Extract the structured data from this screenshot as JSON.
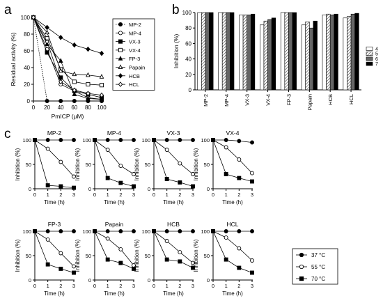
{
  "panels": {
    "a": "a",
    "b": "b",
    "c": "c"
  },
  "chart_data": [
    {
      "id": "a",
      "type": "line",
      "xlabel": "PmICP (μM)",
      "ylabel": "Residual activity (%)",
      "xlim": [
        0,
        100
      ],
      "ylim": [
        0,
        100
      ],
      "xticks": [
        0,
        20,
        40,
        60,
        80,
        100
      ],
      "yticks": [
        0,
        20,
        40,
        60,
        80,
        100
      ],
      "x": [
        0,
        20,
        40,
        60,
        80,
        100
      ],
      "legend_position": "right",
      "series": [
        {
          "name": "MP-2",
          "marker": "circle-filled",
          "dashed": true,
          "values": [
            100,
            0,
            0,
            0,
            0,
            0
          ]
        },
        {
          "name": "MP-4",
          "marker": "circle-open",
          "values": [
            100,
            62,
            20,
            12,
            4,
            2
          ]
        },
        {
          "name": "VX-3",
          "marker": "square-filled",
          "values": [
            100,
            58,
            28,
            12,
            8,
            4
          ]
        },
        {
          "name": "VX-4",
          "marker": "square-open",
          "values": [
            100,
            75,
            38,
            23,
            20,
            19
          ]
        },
        {
          "name": "FP-3",
          "marker": "triangle-filled",
          "values": [
            100,
            68,
            48,
            8,
            3,
            2
          ]
        },
        {
          "name": "Papain",
          "marker": "triangle-open",
          "values": [
            100,
            82,
            36,
            32,
            31,
            29
          ]
        },
        {
          "name": "HCB",
          "marker": "diamond-filled",
          "values": [
            100,
            88,
            76,
            67,
            62,
            57
          ]
        },
        {
          "name": "HCL",
          "marker": "diamond-open",
          "values": [
            100,
            71,
            23,
            13,
            9,
            7
          ]
        }
      ]
    },
    {
      "id": "b",
      "type": "bar",
      "ylabel": "Inhibition (%)",
      "ylim": [
        0,
        100
      ],
      "yticks": [
        0,
        20,
        40,
        60,
        80,
        100
      ],
      "categories": [
        "MP-2",
        "MP-4",
        "VX-3",
        "VX-4",
        "FP-3",
        "Papain",
        "HCB",
        "HCL"
      ],
      "legend_position": "right",
      "series": [
        {
          "name": "4",
          "fill": "#ffffff",
          "pattern": "plain",
          "values": [
            100,
            100,
            97,
            84,
            100,
            84,
            97,
            93
          ]
        },
        {
          "name": "5",
          "fill": "#e0e0e0",
          "pattern": "hatch",
          "values": [
            100,
            100,
            97,
            89,
            100,
            88,
            98,
            95
          ]
        },
        {
          "name": "6",
          "fill": "#666666",
          "pattern": "solid",
          "values": [
            100,
            100,
            97,
            91,
            100,
            80,
            97,
            98
          ]
        },
        {
          "name": "7",
          "fill": "#000000",
          "pattern": "solid",
          "values": [
            100,
            100,
            98,
            93,
            100,
            89,
            98,
            99
          ]
        }
      ]
    },
    {
      "id": "c",
      "type": "line",
      "xlabel": "Time (h)",
      "ylabel": "Inhibition (%)",
      "xlim": [
        0,
        3
      ],
      "ylim": [
        0,
        100
      ],
      "xticks": [
        0,
        1,
        2,
        3
      ],
      "yticks": [
        0,
        50,
        100
      ],
      "x": [
        0,
        1,
        2,
        3
      ],
      "legend_position": "bottom-right",
      "legend": [
        {
          "name": "37 °C",
          "marker": "circle-filled"
        },
        {
          "name": "55 °C",
          "marker": "circle-open"
        },
        {
          "name": "70 °C",
          "marker": "square-filled"
        }
      ],
      "subplots": [
        {
          "title": "MP-2",
          "s37": [
            100,
            100,
            100,
            100
          ],
          "s55": [
            100,
            82,
            55,
            25
          ],
          "s70": [
            100,
            7,
            5,
            2
          ]
        },
        {
          "title": "MP-4",
          "s37": [
            100,
            100,
            100,
            100
          ],
          "s55": [
            100,
            80,
            47,
            30
          ],
          "s70": [
            100,
            22,
            12,
            5
          ]
        },
        {
          "title": "VX-3",
          "s37": [
            100,
            100,
            100,
            100
          ],
          "s55": [
            100,
            80,
            52,
            30
          ],
          "s70": [
            100,
            20,
            13,
            5
          ]
        },
        {
          "title": "VX-4",
          "s37": [
            100,
            100,
            98,
            95
          ],
          "s55": [
            100,
            85,
            60,
            32
          ],
          "s70": [
            100,
            30,
            22,
            15
          ]
        },
        {
          "title": "FP-3",
          "s37": [
            100,
            100,
            100,
            100
          ],
          "s55": [
            100,
            83,
            55,
            28
          ],
          "s70": [
            100,
            32,
            23,
            15
          ]
        },
        {
          "title": "Papain",
          "s37": [
            100,
            100,
            100,
            100
          ],
          "s55": [
            100,
            85,
            63,
            30
          ],
          "s70": [
            100,
            42,
            35,
            23
          ]
        },
        {
          "title": "HCB",
          "s37": [
            100,
            100,
            100,
            100
          ],
          "s55": [
            100,
            80,
            57,
            35
          ],
          "s70": [
            100,
            42,
            38,
            25
          ]
        },
        {
          "title": "HCL",
          "s37": [
            100,
            100,
            100,
            100
          ],
          "s55": [
            100,
            87,
            65,
            40
          ],
          "s70": [
            100,
            42,
            25,
            15
          ]
        }
      ]
    }
  ]
}
